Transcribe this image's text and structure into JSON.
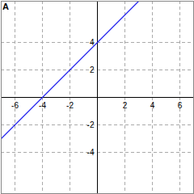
{
  "chart_data": {
    "type": "line",
    "title": "A",
    "x": [
      -7,
      -4,
      0,
      3
    ],
    "values": [
      -3,
      0,
      4,
      7
    ],
    "color": "#2222ee",
    "xlim": [
      -7,
      7
    ],
    "ylim": [
      -7,
      7
    ],
    "xticks": [
      -6,
      -4,
      -2,
      2,
      4,
      6
    ],
    "yticks": [
      -4,
      -2,
      2,
      4
    ],
    "grid": true
  }
}
